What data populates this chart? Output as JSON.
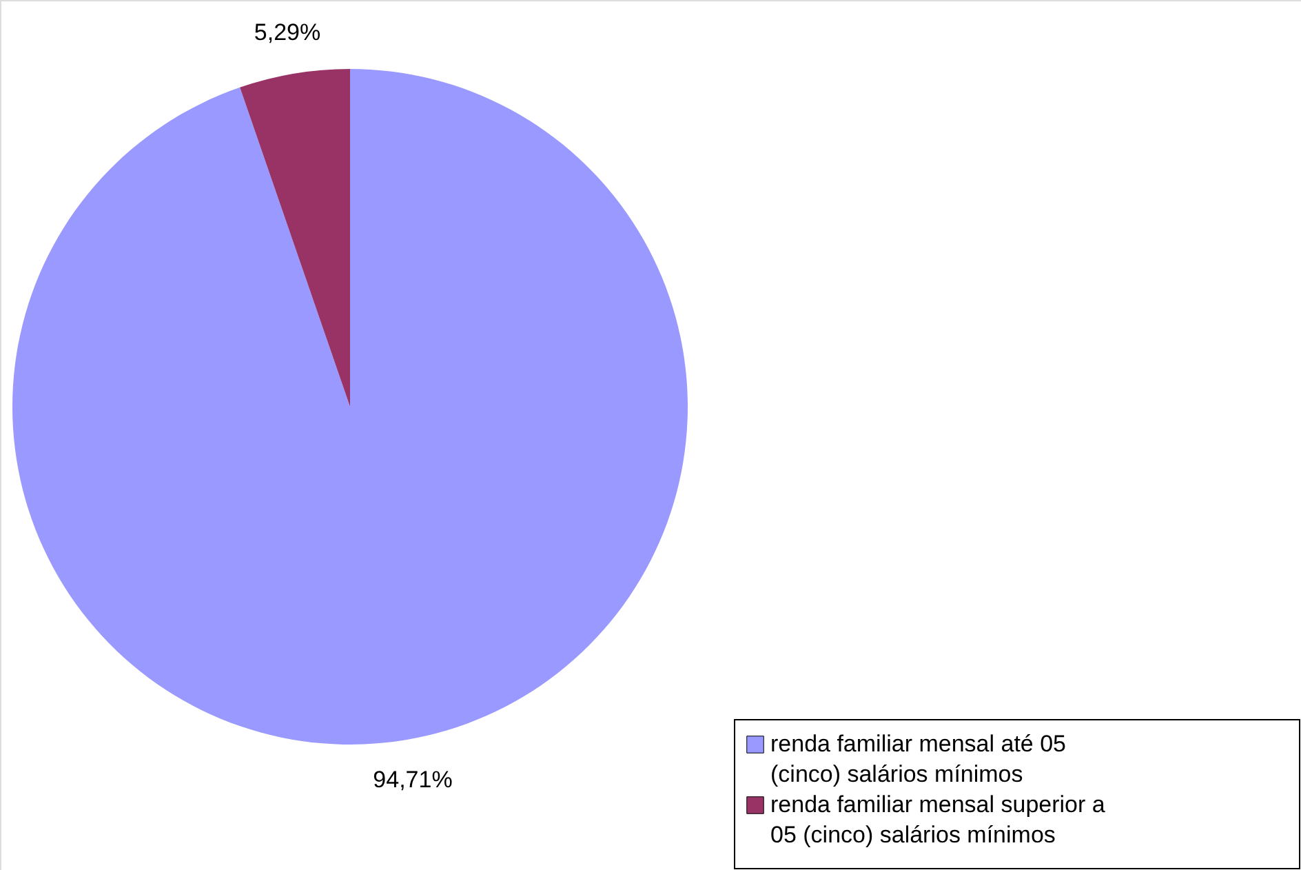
{
  "chart_data": {
    "type": "pie",
    "categories": [
      "renda familiar mensal até 05 (cinco) salários mínimos",
      "renda familiar mensal superior a 05 (cinco) salários mínimos"
    ],
    "values": [
      94.71,
      5.29
    ],
    "colors": [
      "#9999ff",
      "#993366"
    ],
    "value_labels": [
      "94,71%",
      "5,29%"
    ],
    "legend": "bottom right"
  }
}
